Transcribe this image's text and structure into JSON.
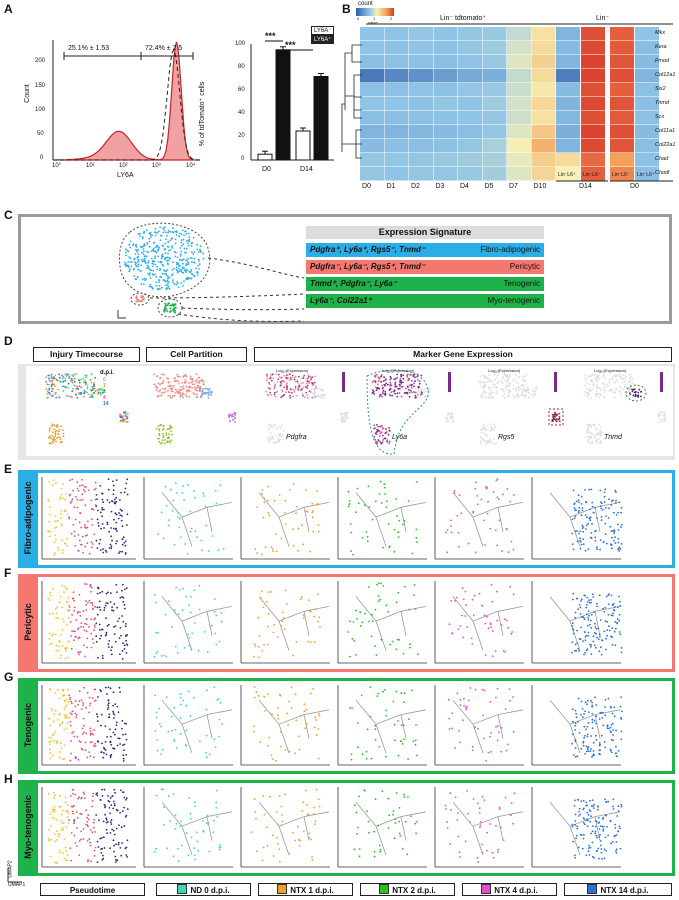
{
  "panels": {
    "a": "A",
    "b": "B",
    "c": "C",
    "d": "D",
    "e": "E",
    "f": "F",
    "g": "G",
    "h": "H"
  },
  "panel_a": {
    "hist": {
      "ylabel": "Count",
      "xlabel": "LY6A",
      "yticks": [
        "0",
        "50",
        "100",
        "150",
        "200"
      ],
      "xticks": [
        "10°",
        "10¹",
        "10²",
        "10³",
        "10⁴"
      ],
      "gate_left": "25.1% ± 1.53",
      "gate_right": "72.4% ± 2.5"
    },
    "bar": {
      "ylabel": "% of tdTomato⁺ cells",
      "yticks": [
        "0",
        "20",
        "40",
        "60",
        "80",
        "100"
      ],
      "groups": [
        "D0",
        "D14"
      ],
      "sig1": "***",
      "sig2": "***",
      "legend": [
        "LY6A⁻",
        "LY6A⁺"
      ]
    }
  },
  "chart_data": [
    {
      "type": "bar",
      "categories": [
        "D0",
        "D14"
      ],
      "series": [
        {
          "name": "LY6A⁻",
          "values": [
            5,
            25
          ]
        },
        {
          "name": "LY6A⁺",
          "values": [
            95,
            72
          ]
        }
      ],
      "ylabel": "% of tdTomato⁺ cells",
      "ylim": [
        0,
        100
      ],
      "legend": "top-right"
    },
    {
      "type": "heatmap",
      "title": "Lin⁻ tdtomato⁺",
      "rows": [
        "Mkx",
        "Kera",
        "Fmod",
        "Col12a1",
        "Six2",
        "Tnmd",
        "Scx",
        "Col11a1",
        "Col22a1",
        "Chad",
        "Chodl"
      ],
      "columns": [
        "D0",
        "D1",
        "D2",
        "D3",
        "D4",
        "D5",
        "D7",
        "D10",
        "Lin⁻L6⁺",
        "Lin⁻L6⁻",
        "Lin⁻L6⁻",
        "Lin⁻L6⁺"
      ],
      "values": [
        [
          0.35,
          0.35,
          0.36,
          0.35,
          0.36,
          0.37,
          0.45,
          0.6,
          0.3,
          0.95,
          0.92,
          0.35
        ],
        [
          0.35,
          0.34,
          0.35,
          0.34,
          0.36,
          0.38,
          0.48,
          0.62,
          0.32,
          0.96,
          0.93,
          0.33
        ],
        [
          0.33,
          0.34,
          0.34,
          0.33,
          0.35,
          0.37,
          0.5,
          0.65,
          0.3,
          0.97,
          0.94,
          0.32
        ],
        [
          0.1,
          0.15,
          0.18,
          0.22,
          0.26,
          0.28,
          0.45,
          0.62,
          0.12,
          0.97,
          0.95,
          0.3
        ],
        [
          0.34,
          0.34,
          0.35,
          0.34,
          0.36,
          0.37,
          0.46,
          0.58,
          0.32,
          0.95,
          0.92,
          0.34
        ],
        [
          0.35,
          0.35,
          0.34,
          0.36,
          0.35,
          0.38,
          0.48,
          0.63,
          0.3,
          0.96,
          0.94,
          0.33
        ],
        [
          0.33,
          0.33,
          0.34,
          0.34,
          0.35,
          0.36,
          0.47,
          0.6,
          0.31,
          0.95,
          0.93,
          0.34
        ],
        [
          0.3,
          0.3,
          0.31,
          0.32,
          0.33,
          0.36,
          0.5,
          0.68,
          0.28,
          0.97,
          0.95,
          0.32
        ],
        [
          0.32,
          0.33,
          0.33,
          0.34,
          0.36,
          0.4,
          0.56,
          0.75,
          0.3,
          0.96,
          0.94,
          0.33
        ],
        [
          0.36,
          0.36,
          0.36,
          0.37,
          0.38,
          0.4,
          0.52,
          0.66,
          0.62,
          0.9,
          0.8,
          0.34
        ],
        [
          0.36,
          0.35,
          0.36,
          0.36,
          0.37,
          0.39,
          0.5,
          0.64,
          0.55,
          0.92,
          0.85,
          0.33
        ]
      ],
      "colorbar_label": "count",
      "colorbar_ticks": [
        "0",
        "1",
        "2"
      ],
      "colorbar_sublabel": "value"
    }
  ],
  "panel_b": {
    "group_left": "Lin⁻ tdtomato⁺",
    "group_right": "Lin⁻",
    "sub_d14": "D14",
    "sub_d0": "D0"
  },
  "panel_c": {
    "title": "Expression Signature",
    "rows": [
      {
        "genes": "Pdgfra⁺, Ly6a⁺, Rgs5⁻, Tnmd⁻",
        "type": "Fibro-adipogenic",
        "color": "#29aee6"
      },
      {
        "genes": "Pdgfra⁻, Ly6a⁻, Rgs5⁺, Tnmd⁻",
        "type": "Pericytic",
        "color": "#f4786f"
      },
      {
        "genes": "Tnmd⁺, Pdgfra⁻, Ly6a⁻",
        "type": "Tenogenic",
        "color": "#1fb24a"
      },
      {
        "genes": "Ly6a⁻, Col22a1⁺",
        "type": "Myo-tenogenic",
        "color": "#1fb24a"
      }
    ],
    "axis_hint": "UMAP"
  },
  "panel_d": {
    "headers": [
      "Injury Timecourse",
      "Cell Partition",
      "Marker Gene Expression"
    ],
    "dpi_title": "d.p.i.",
    "dpi_values": [
      "0",
      "1",
      "2",
      "4",
      "14"
    ],
    "partition_labels": [
      "1",
      "2",
      "3",
      "4"
    ],
    "genes": [
      "Pdgfra",
      "Ly6a",
      "Rgs5",
      "Tnmd"
    ],
    "expr_label": "Log₁₀(Expression)"
  },
  "rows": [
    {
      "label": "Fibro-adipogenic",
      "color": "#29aee6"
    },
    {
      "label": "Pericytic",
      "color": "#f4786f"
    },
    {
      "label": "Tenogenic",
      "color": "#1fb24a"
    },
    {
      "label": "Myo-tenogenic",
      "color": "#1fb24a"
    }
  ],
  "bottom_legend": [
    {
      "label": "Pseudotime",
      "color": ""
    },
    {
      "label": "ND 0 d.p.i.",
      "color": "#3cd6b6"
    },
    {
      "label": "NTX 1 d.p.i.",
      "color": "#f39a2c"
    },
    {
      "label": "NTX 2 d.p.i.",
      "color": "#26c21f"
    },
    {
      "label": "NTX 4 d.p.i.",
      "color": "#e54fc8"
    },
    {
      "label": "NTX 14 d.p.i.",
      "color": "#2c72d6"
    }
  ],
  "umap_axis": {
    "y": "UMAP2",
    "x": "UMAP1"
  },
  "colors": {
    "nd0": "#3cd6b6",
    "ntx1": "#f39a2c",
    "ntx2": "#26c21f",
    "ntx4": "#e54fc8",
    "ntx14": "#2c72d6",
    "fap": "#29aee6",
    "peri": "#f4786f",
    "teno": "#1fb24a"
  }
}
